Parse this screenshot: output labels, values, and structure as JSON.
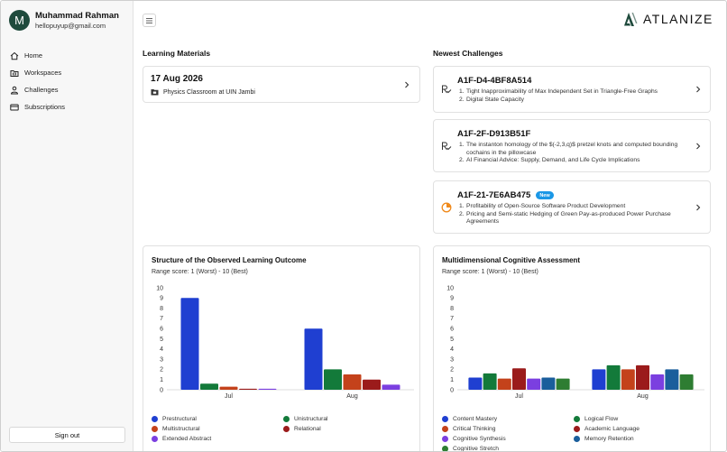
{
  "user": {
    "initial": "M",
    "name": "Muhammad Rahman",
    "email": "hellopuyup@gmail.com"
  },
  "nav": {
    "items": [
      {
        "label": "Home",
        "icon": "home-icon"
      },
      {
        "label": "Workspaces",
        "icon": "folder-icon"
      },
      {
        "label": "Challenges",
        "icon": "user-check-icon"
      },
      {
        "label": "Subscriptions",
        "icon": "card-icon"
      }
    ],
    "signout": "Sign out"
  },
  "brand": {
    "name": "ATLANIZE"
  },
  "learning": {
    "title": "Learning Materials",
    "card": {
      "date": "17 Aug 2026",
      "classroom": "Physics Classroom at UIN Jambi"
    }
  },
  "challenges": {
    "title": "Newest Challenges",
    "items": [
      {
        "id": "A1F-D4-4BF8A514",
        "icon": "grading-icon",
        "new": false,
        "list": [
          "Tight Inapproximability of Max Independent Set in Triangle-Free Graphs",
          "Digital State Capacity"
        ]
      },
      {
        "id": "A1F-2F-D913B51F",
        "icon": "grading-icon",
        "new": false,
        "list": [
          "The instanton homology of the $(-2,3,q)$ pretzel knots and computed bounding cochains in the pillowcase",
          "AI Financial Advice: Supply, Demand, and Life Cycle Implications"
        ]
      },
      {
        "id": "A1F-21-7E6AB475",
        "icon": "clock-icon",
        "new": true,
        "badge": "New",
        "list": [
          "Profitability of Open-Source Software Product Development",
          "Pricing and Semi-static Hedging of Green Pay-as-produced Power Purchase Agreements"
        ]
      }
    ]
  },
  "solo": {
    "title": "Structure of the Observed Learning Outcome",
    "subtitle": "Range score: 1 (Worst) - 10 (Best)",
    "legend": [
      "Prestructural",
      "Unistructural",
      "Multistructural",
      "Relational",
      "Extended Abstract"
    ]
  },
  "mca": {
    "title": "Multidimensional Cognitive Assessment",
    "subtitle": "Range score: 1 (Worst) - 10 (Best)",
    "legend": [
      "Content Mastery",
      "Logical Flow",
      "Critical Thinking",
      "Academic Language",
      "Cognitive Synthesis",
      "Memory Retention",
      "Cognitive Stretch"
    ]
  },
  "chart_data": [
    {
      "type": "bar",
      "title": "Structure of the Observed Learning Outcome",
      "subtitle": "Range score: 1 (Worst) - 10 (Best)",
      "categories": [
        "Jul",
        "Aug"
      ],
      "ylim": [
        0,
        10
      ],
      "yticks": [
        0,
        1,
        2,
        3,
        4,
        5,
        6,
        7,
        8,
        9,
        10
      ],
      "grid": false,
      "legend_position": "bottom",
      "series": [
        {
          "name": "Prestructural",
          "color": "#1f3fd1",
          "values": [
            9,
            6
          ]
        },
        {
          "name": "Unistructural",
          "color": "#137a3a",
          "values": [
            0.6,
            2
          ]
        },
        {
          "name": "Multistructural",
          "color": "#c4421b",
          "values": [
            0.3,
            1.5
          ]
        },
        {
          "name": "Relational",
          "color": "#9b1b1b",
          "values": [
            0.1,
            1
          ]
        },
        {
          "name": "Extended Abstract",
          "color": "#7b3fe0",
          "values": [
            0.1,
            0.5
          ]
        }
      ]
    },
    {
      "type": "bar",
      "title": "Multidimensional Cognitive Assessment",
      "subtitle": "Range score: 1 (Worst) - 10 (Best)",
      "categories": [
        "Jul",
        "Aug"
      ],
      "ylim": [
        0,
        10
      ],
      "yticks": [
        0,
        1,
        2,
        3,
        4,
        5,
        6,
        7,
        8,
        9,
        10
      ],
      "grid": false,
      "legend_position": "bottom",
      "series": [
        {
          "name": "Content Mastery",
          "color": "#1f3fd1",
          "values": [
            1.2,
            2
          ]
        },
        {
          "name": "Logical Flow",
          "color": "#137a3a",
          "values": [
            1.6,
            2.4
          ]
        },
        {
          "name": "Critical Thinking",
          "color": "#c4421b",
          "values": [
            1.1,
            2
          ]
        },
        {
          "name": "Academic Language",
          "color": "#9b1b1b",
          "values": [
            2.1,
            2.4
          ]
        },
        {
          "name": "Cognitive Synthesis",
          "color": "#7b3fe0",
          "values": [
            1.1,
            1.5
          ]
        },
        {
          "name": "Memory Retention",
          "color": "#1a5e9c",
          "values": [
            1.2,
            2
          ]
        },
        {
          "name": "Cognitive Stretch",
          "color": "#2e7d32",
          "values": [
            1.1,
            1.5
          ]
        }
      ]
    }
  ]
}
